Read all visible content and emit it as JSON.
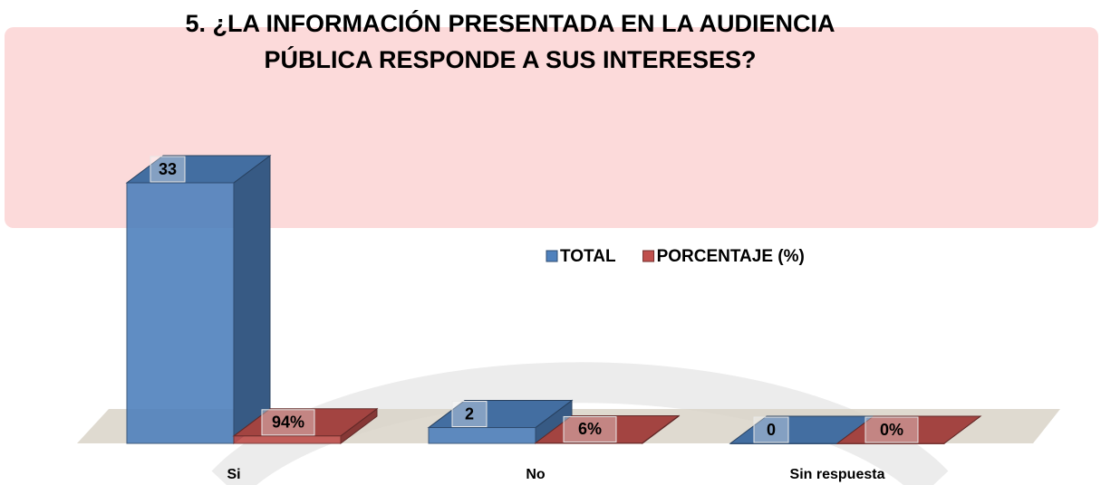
{
  "chart_data": {
    "type": "bar3d",
    "title": [
      "5. ¿LA INFORMACIÓN PRESENTADA EN LA AUDIENCIA",
      "PÚBLICA RESPONDE A SUS INTERESES?"
    ],
    "categories": [
      "Si",
      "No",
      "Sin respuesta"
    ],
    "series": [
      {
        "name": "TOTAL",
        "color": "#4f81bd",
        "values": [
          33,
          2,
          0
        ]
      },
      {
        "name": "PORCENTAJE (%)",
        "color": "#c0504d",
        "values": [
          0.94,
          0.06,
          0
        ],
        "value_labels": [
          "94%",
          "6%",
          "0%"
        ]
      }
    ],
    "legend": "top-right"
  }
}
